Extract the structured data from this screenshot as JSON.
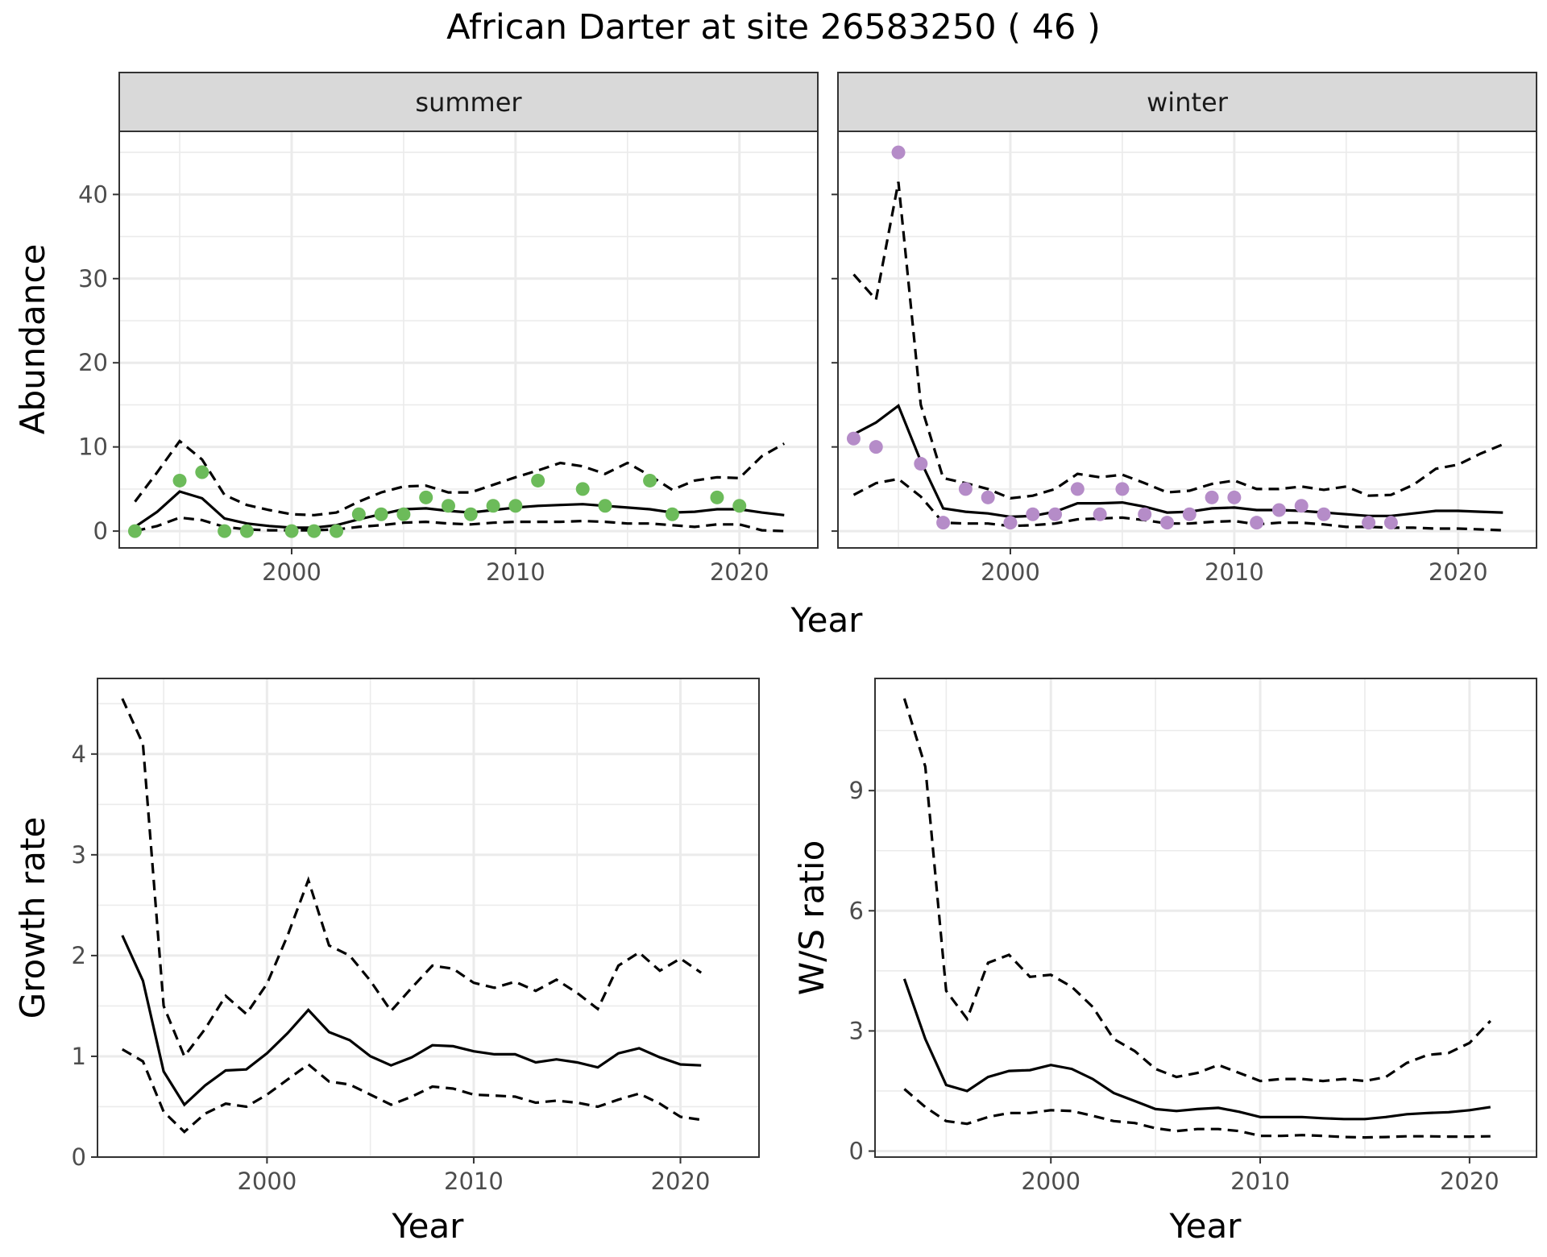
{
  "title": "African Darter at site 26583250 ( 46 )",
  "colors": {
    "summer": "#6cbb5a",
    "winter": "#b58cc8",
    "strip_bg": "#d9d9d9",
    "grid": "#ebebeb",
    "line": "#000000"
  },
  "abundance": {
    "ylabel": "Abundance",
    "xlabel": "Year",
    "x_ticks": [
      2000,
      2010,
      2020
    ],
    "y_ticks": [
      0,
      10,
      20,
      30,
      40
    ],
    "xlim": [
      1992.3,
      2023.5
    ],
    "ylim": [
      -2,
      47.5
    ],
    "panels": [
      {
        "strip": "summer",
        "points": {
          "x": [
            1993,
            1995,
            1996,
            1997,
            1998,
            2000,
            2001,
            2002,
            2003,
            2004,
            2005,
            2006,
            2007,
            2008,
            2009,
            2010,
            2011,
            2013,
            2014,
            2016,
            2017,
            2019,
            2020
          ],
          "y": [
            0,
            6,
            7,
            0,
            0,
            0,
            0,
            0,
            2,
            2,
            2,
            4,
            3,
            2,
            3,
            3,
            6,
            5,
            3,
            6,
            2,
            4,
            3
          ]
        },
        "line": {
          "x": [
            1993,
            1994,
            1995,
            1996,
            1997,
            1998,
            1999,
            2000,
            2001,
            2002,
            2003,
            2004,
            2005,
            2006,
            2007,
            2008,
            2009,
            2010,
            2011,
            2012,
            2013,
            2014,
            2015,
            2016,
            2017,
            2018,
            2019,
            2020,
            2021,
            2022
          ],
          "mean": [
            0.5,
            2.3,
            4.7,
            3.9,
            1.5,
            0.9,
            0.6,
            0.4,
            0.4,
            0.7,
            1.4,
            2.0,
            2.6,
            2.7,
            2.4,
            2.2,
            2.5,
            2.8,
            3.0,
            3.1,
            3.2,
            3.0,
            2.8,
            2.6,
            2.2,
            2.3,
            2.6,
            2.6,
            2.2,
            1.9
          ],
          "upper": [
            3.5,
            7.0,
            10.7,
            8.5,
            4.3,
            3.1,
            2.5,
            2.0,
            1.9,
            2.2,
            3.5,
            4.6,
            5.3,
            5.4,
            4.6,
            4.6,
            5.5,
            6.4,
            7.2,
            8.1,
            7.7,
            6.8,
            8.1,
            6.6,
            4.9,
            6.0,
            6.4,
            6.3,
            8.9,
            10.4
          ],
          "lower": [
            0.0,
            0.6,
            1.6,
            1.3,
            0.5,
            0.2,
            0.1,
            0.1,
            0.1,
            0.2,
            0.5,
            0.7,
            1.0,
            1.1,
            0.9,
            0.8,
            1.0,
            1.1,
            1.1,
            1.1,
            1.2,
            1.1,
            0.9,
            0.9,
            0.7,
            0.5,
            0.8,
            0.8,
            0.1,
            0.0
          ]
        }
      },
      {
        "strip": "winter",
        "points": {
          "x": [
            1993,
            1994,
            1995,
            1996,
            1997,
            1998,
            1999,
            2000,
            2001,
            2002,
            2003,
            2004,
            2005,
            2006,
            2007,
            2008,
            2009,
            2010,
            2011,
            2012,
            2013,
            2014,
            2016,
            2017
          ],
          "y": [
            11,
            10,
            45,
            8,
            1,
            5,
            4,
            1,
            2,
            2,
            5,
            2,
            5,
            2,
            1,
            2,
            4,
            4,
            1,
            2.5,
            3,
            2,
            1,
            1
          ]
        },
        "line": {
          "x": [
            1993,
            1994,
            1995,
            1996,
            1997,
            1998,
            1999,
            2000,
            2001,
            2002,
            2003,
            2004,
            2005,
            2006,
            2007,
            2008,
            2009,
            2010,
            2011,
            2012,
            2013,
            2014,
            2015,
            2016,
            2017,
            2018,
            2019,
            2020,
            2021,
            2022
          ],
          "mean": [
            11.5,
            12.9,
            14.9,
            8.3,
            2.7,
            2.3,
            2.1,
            1.7,
            1.8,
            2.3,
            3.3,
            3.3,
            3.4,
            2.9,
            2.2,
            2.3,
            2.7,
            2.8,
            2.5,
            2.5,
            2.4,
            2.2,
            2.0,
            1.8,
            1.8,
            2.1,
            2.4,
            2.4,
            2.3,
            2.2
          ],
          "upper": [
            30.5,
            27.5,
            41.5,
            15.0,
            6.3,
            5.7,
            5.0,
            3.9,
            4.2,
            5.0,
            6.8,
            6.4,
            6.7,
            5.7,
            4.6,
            4.8,
            5.6,
            6.0,
            5.0,
            5.0,
            5.3,
            4.9,
            5.3,
            4.2,
            4.3,
            5.5,
            7.4,
            7.9,
            9.2,
            10.3
          ],
          "lower": [
            4.3,
            5.7,
            6.2,
            4.1,
            1.0,
            0.9,
            0.9,
            0.6,
            0.7,
            0.9,
            1.4,
            1.5,
            1.6,
            1.3,
            0.9,
            0.9,
            1.1,
            1.2,
            0.8,
            1.0,
            1.0,
            0.8,
            0.5,
            0.5,
            0.4,
            0.4,
            0.3,
            0.3,
            0.2,
            0.1
          ]
        }
      }
    ]
  },
  "growth": {
    "ylabel": "Growth rate",
    "xlabel": "Year",
    "x_ticks": [
      2000,
      2010,
      2020
    ],
    "y_ticks": [
      0,
      1,
      2,
      3,
      4
    ],
    "xlim": [
      1991.8,
      2023.8
    ],
    "ylim": [
      0,
      4.75
    ],
    "line": {
      "x": [
        1993,
        1994,
        1995,
        1996,
        1997,
        1998,
        1999,
        2000,
        2001,
        2002,
        2003,
        2004,
        2005,
        2006,
        2007,
        2008,
        2009,
        2010,
        2011,
        2012,
        2013,
        2014,
        2015,
        2016,
        2017,
        2018,
        2019,
        2020,
        2021
      ],
      "mean": [
        2.2,
        1.75,
        0.85,
        0.52,
        0.71,
        0.86,
        0.87,
        1.03,
        1.23,
        1.46,
        1.24,
        1.16,
        1.0,
        0.91,
        0.99,
        1.11,
        1.1,
        1.05,
        1.02,
        1.02,
        0.94,
        0.97,
        0.94,
        0.89,
        1.03,
        1.08,
        0.99,
        0.92,
        0.91
      ],
      "upper": [
        4.55,
        4.1,
        1.5,
        1.0,
        1.27,
        1.6,
        1.42,
        1.72,
        2.2,
        2.75,
        2.1,
        2.0,
        1.75,
        1.45,
        1.68,
        1.9,
        1.87,
        1.73,
        1.68,
        1.74,
        1.65,
        1.76,
        1.63,
        1.47,
        1.9,
        2.03,
        1.85,
        1.97,
        1.83
      ],
      "lower": [
        1.07,
        0.95,
        0.45,
        0.25,
        0.43,
        0.53,
        0.5,
        0.62,
        0.77,
        0.92,
        0.75,
        0.72,
        0.62,
        0.52,
        0.6,
        0.7,
        0.68,
        0.62,
        0.61,
        0.6,
        0.54,
        0.56,
        0.54,
        0.5,
        0.57,
        0.63,
        0.53,
        0.4,
        0.37
      ]
    }
  },
  "ws_ratio": {
    "ylabel": "W/S ratio",
    "xlabel": "Year",
    "x_ticks": [
      2000,
      2010,
      2020
    ],
    "y_ticks": [
      0,
      3,
      6,
      9
    ],
    "xlim": [
      1991.6,
      2023.2
    ],
    "ylim": [
      -0.15,
      11.8
    ],
    "line": {
      "x": [
        1993,
        1994,
        1995,
        1996,
        1997,
        1998,
        1999,
        2000,
        2001,
        2002,
        2003,
        2004,
        2005,
        2006,
        2007,
        2008,
        2009,
        2010,
        2011,
        2012,
        2013,
        2014,
        2015,
        2016,
        2017,
        2018,
        2019,
        2020,
        2021
      ],
      "mean": [
        4.3,
        2.8,
        1.65,
        1.5,
        1.85,
        2.0,
        2.02,
        2.15,
        2.05,
        1.8,
        1.45,
        1.25,
        1.05,
        1.0,
        1.05,
        1.08,
        0.98,
        0.85,
        0.85,
        0.85,
        0.82,
        0.8,
        0.8,
        0.85,
        0.92,
        0.95,
        0.97,
        1.02,
        1.1
      ],
      "upper": [
        11.3,
        9.6,
        4.0,
        3.3,
        4.7,
        4.9,
        4.35,
        4.4,
        4.1,
        3.6,
        2.8,
        2.5,
        2.05,
        1.85,
        1.95,
        2.15,
        1.95,
        1.75,
        1.8,
        1.8,
        1.75,
        1.8,
        1.75,
        1.85,
        2.2,
        2.4,
        2.45,
        2.7,
        3.25
      ],
      "lower": [
        1.55,
        1.1,
        0.75,
        0.68,
        0.85,
        0.95,
        0.95,
        1.02,
        1.0,
        0.88,
        0.75,
        0.7,
        0.57,
        0.5,
        0.55,
        0.55,
        0.5,
        0.38,
        0.38,
        0.4,
        0.38,
        0.35,
        0.34,
        0.35,
        0.37,
        0.37,
        0.36,
        0.36,
        0.37
      ]
    }
  }
}
